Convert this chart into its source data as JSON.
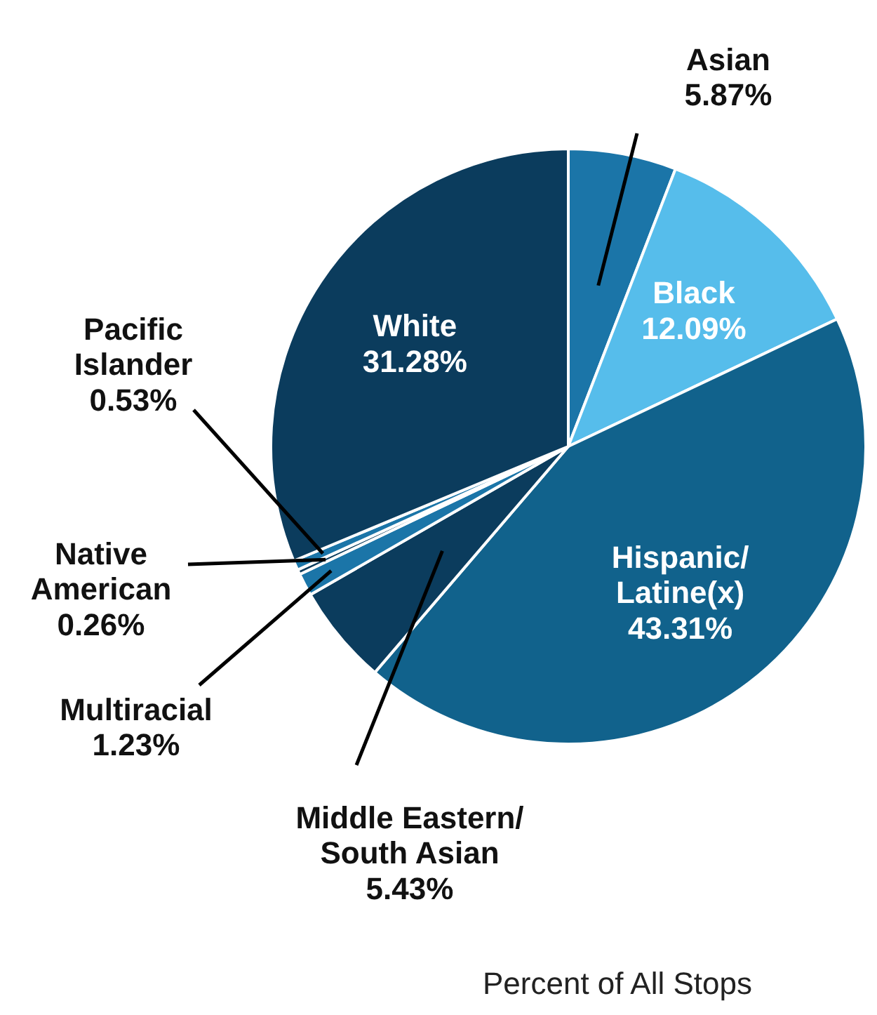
{
  "chart_data": {
    "type": "pie",
    "title": "Percent of All Stops",
    "categories": [
      "Asian",
      "Black",
      "Hispanic/ Latine(x)",
      "Middle Eastern/ South Asian",
      "Multiracial",
      "Native American",
      "Pacific Islander",
      "White"
    ],
    "values": [
      5.87,
      12.09,
      43.31,
      5.43,
      1.23,
      0.26,
      0.53,
      31.28
    ],
    "colors": [
      "#1b75a8",
      "#56bdeb",
      "#11628c",
      "#0b3c5d",
      "#1b75a8",
      "#0b3c5d",
      "#1b75a8",
      "#0b3c5d"
    ],
    "value_labels": [
      "5.87%",
      "12.09%",
      "43.31%",
      "5.43%",
      "1.23%",
      "0.26%",
      "0.53%",
      "31.28%"
    ]
  }
}
